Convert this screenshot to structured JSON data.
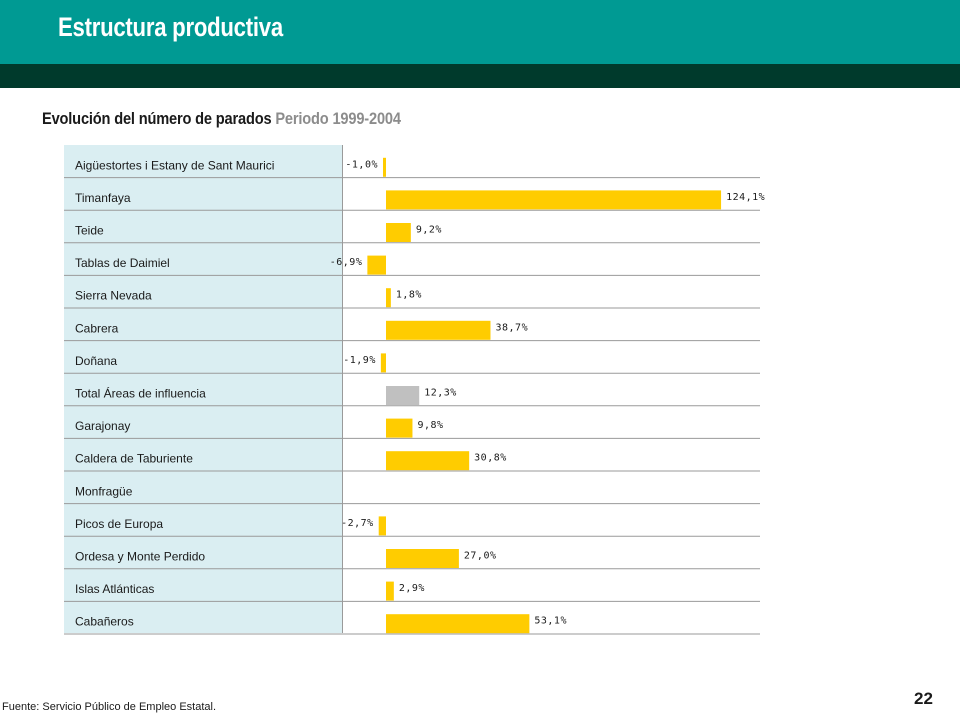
{
  "header": {
    "title": "Estructura productiva"
  },
  "colors": {
    "teal": "#009a93",
    "dark": "#003a2c",
    "bar": "#ffcc00",
    "highlight": "#c0c0c0",
    "label_bg": "#daeef2"
  },
  "chart_data": {
    "type": "bar",
    "orientation": "horizontal",
    "title": "Evolución del número de parados",
    "subtitle": "Periodo 1999-2004",
    "categories": [
      "Aigüestortes i Estany de Sant Maurici",
      "Timanfaya",
      "Teide",
      "Tablas de Daimiel",
      "Sierra Nevada",
      "Cabrera",
      "Doñana",
      "Total Áreas de influencia",
      "Garajonay",
      "Caldera de Taburiente",
      "Monfragüe",
      "Picos de Europa",
      "Ordesa y Monte Perdido",
      "Islas Atlánticas",
      "Cabañeros"
    ],
    "values": [
      -1.0,
      124.1,
      9.2,
      -6.9,
      1.8,
      38.7,
      -1.9,
      12.3,
      9.8,
      30.8,
      null,
      -2.7,
      27.0,
      2.9,
      53.1
    ],
    "value_labels": [
      "-1,0%",
      "124,1%",
      "9,2%",
      "-6,9%",
      "1,8%",
      "38,7%",
      "-1,9%",
      "12,3%",
      "9,8%",
      "30,8%",
      "",
      "-2,7%",
      "27,0%",
      "2,9%",
      "53,1%"
    ],
    "highlight_index": 7,
    "legend": "none",
    "grid": false
  },
  "footer": {
    "source": "Fuente: Servicio Público de Empleo Estatal.",
    "page": "22"
  }
}
